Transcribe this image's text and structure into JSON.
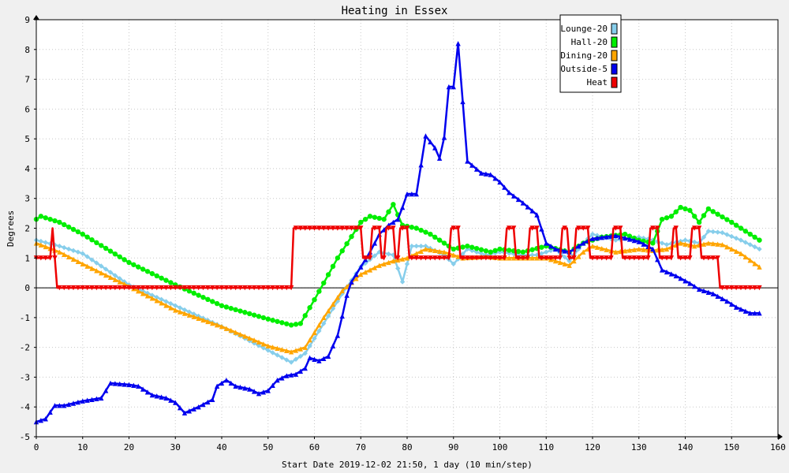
{
  "chart_data": {
    "type": "line",
    "title": "Heating in Essex",
    "xlabel": "Start Date 2019-12-02 21:50, 1 day (10 min/step)",
    "ylabel": "Degrees",
    "xlim": [
      0,
      160
    ],
    "ylim": [
      -5,
      9
    ],
    "xticks": [
      0,
      10,
      20,
      30,
      40,
      50,
      60,
      70,
      80,
      90,
      100,
      110,
      120,
      130,
      140,
      150,
      160
    ],
    "yticks": [
      -5,
      -4,
      -3,
      -2,
      -1,
      0,
      1,
      2,
      3,
      4,
      5,
      6,
      7,
      8,
      9
    ],
    "grid": true,
    "legend_position": "top-right",
    "series": [
      {
        "name": "Lounge-20",
        "color": "#87ceeb",
        "marker": "diamond",
        "points": [
          [
            0,
            1.6
          ],
          [
            5,
            1.4
          ],
          [
            10,
            1.15
          ],
          [
            20,
            0.1
          ],
          [
            30,
            -0.6
          ],
          [
            40,
            -1.3
          ],
          [
            50,
            -2.1
          ],
          [
            55,
            -2.5
          ],
          [
            58,
            -2.2
          ],
          [
            62,
            -1.2
          ],
          [
            66,
            -0.2
          ],
          [
            70,
            0.7
          ],
          [
            74,
            1.2
          ],
          [
            77,
            1.1
          ],
          [
            79,
            0.2
          ],
          [
            81,
            1.4
          ],
          [
            84,
            1.4
          ],
          [
            88,
            1.1
          ],
          [
            90,
            0.8
          ],
          [
            93,
            1.3
          ],
          [
            97,
            1.1
          ],
          [
            100,
            1.2
          ],
          [
            105,
            1.1
          ],
          [
            108,
            1.1
          ],
          [
            110,
            1.2
          ],
          [
            112,
            1.3
          ],
          [
            115,
            0.9
          ],
          [
            118,
            1.5
          ],
          [
            120,
            1.8
          ],
          [
            125,
            1.6
          ],
          [
            130,
            1.7
          ],
          [
            133,
            1.6
          ],
          [
            136,
            1.45
          ],
          [
            140,
            1.6
          ],
          [
            143,
            1.5
          ],
          [
            145,
            1.9
          ],
          [
            148,
            1.85
          ],
          [
            152,
            1.6
          ],
          [
            156,
            1.3
          ]
        ]
      },
      {
        "name": "Hall-20",
        "color": "#00ee00",
        "marker": "circle",
        "points": [
          [
            0,
            2.3
          ],
          [
            1,
            2.4
          ],
          [
            5,
            2.2
          ],
          [
            10,
            1.8
          ],
          [
            20,
            0.85
          ],
          [
            30,
            0.1
          ],
          [
            40,
            -0.6
          ],
          [
            50,
            -1.05
          ],
          [
            55,
            -1.25
          ],
          [
            57,
            -1.2
          ],
          [
            60,
            -0.4
          ],
          [
            65,
            1.0
          ],
          [
            70,
            2.2
          ],
          [
            72,
            2.4
          ],
          [
            75,
            2.3
          ],
          [
            77,
            2.8
          ],
          [
            79,
            2.1
          ],
          [
            82,
            2.0
          ],
          [
            85,
            1.8
          ],
          [
            90,
            1.3
          ],
          [
            93,
            1.4
          ],
          [
            98,
            1.2
          ],
          [
            100,
            1.3
          ],
          [
            105,
            1.2
          ],
          [
            110,
            1.4
          ],
          [
            115,
            1.2
          ],
          [
            118,
            1.5
          ],
          [
            122,
            1.7
          ],
          [
            127,
            1.8
          ],
          [
            130,
            1.6
          ],
          [
            133,
            1.5
          ],
          [
            135,
            2.3
          ],
          [
            137,
            2.4
          ],
          [
            139,
            2.7
          ],
          [
            141,
            2.6
          ],
          [
            143,
            2.2
          ],
          [
            145,
            2.65
          ],
          [
            150,
            2.2
          ],
          [
            154,
            1.8
          ],
          [
            156,
            1.6
          ]
        ]
      },
      {
        "name": "Dining-20",
        "color": "#ffa500",
        "marker": "triangle",
        "points": [
          [
            0,
            1.5
          ],
          [
            5,
            1.2
          ],
          [
            10,
            0.8
          ],
          [
            20,
            0.05
          ],
          [
            30,
            -0.75
          ],
          [
            40,
            -1.3
          ],
          [
            50,
            -1.95
          ],
          [
            55,
            -2.15
          ],
          [
            58,
            -2.0
          ],
          [
            62,
            -1.0
          ],
          [
            66,
            -0.1
          ],
          [
            70,
            0.45
          ],
          [
            74,
            0.75
          ],
          [
            77,
            0.9
          ],
          [
            80,
            1.0
          ],
          [
            84,
            1.3
          ],
          [
            88,
            1.2
          ],
          [
            92,
            1.0
          ],
          [
            97,
            1.05
          ],
          [
            100,
            1.0
          ],
          [
            105,
            1.0
          ],
          [
            110,
            1.0
          ],
          [
            115,
            0.75
          ],
          [
            118,
            1.2
          ],
          [
            120,
            1.4
          ],
          [
            125,
            1.2
          ],
          [
            130,
            1.3
          ],
          [
            133,
            1.25
          ],
          [
            136,
            1.3
          ],
          [
            139,
            1.5
          ],
          [
            142,
            1.4
          ],
          [
            145,
            1.5
          ],
          [
            148,
            1.45
          ],
          [
            152,
            1.15
          ],
          [
            156,
            0.7
          ]
        ]
      },
      {
        "name": "Outside-5",
        "color": "#0000ee",
        "marker": "triangle",
        "points": [
          [
            0,
            -4.5
          ],
          [
            2,
            -4.4
          ],
          [
            4,
            -3.95
          ],
          [
            6,
            -3.95
          ],
          [
            10,
            -3.8
          ],
          [
            14,
            -3.7
          ],
          [
            16,
            -3.2
          ],
          [
            20,
            -3.25
          ],
          [
            22,
            -3.3
          ],
          [
            25,
            -3.6
          ],
          [
            28,
            -3.7
          ],
          [
            30,
            -3.85
          ],
          [
            32,
            -4.2
          ],
          [
            35,
            -4.0
          ],
          [
            38,
            -3.75
          ],
          [
            39,
            -3.3
          ],
          [
            41,
            -3.1
          ],
          [
            43,
            -3.3
          ],
          [
            46,
            -3.4
          ],
          [
            48,
            -3.55
          ],
          [
            50,
            -3.45
          ],
          [
            52,
            -3.1
          ],
          [
            54,
            -2.95
          ],
          [
            56,
            -2.9
          ],
          [
            58,
            -2.7
          ],
          [
            59,
            -2.35
          ],
          [
            61,
            -2.45
          ],
          [
            63,
            -2.3
          ],
          [
            65,
            -1.6
          ],
          [
            66,
            -0.95
          ],
          [
            67,
            -0.25
          ],
          [
            68,
            0.2
          ],
          [
            70,
            0.7
          ],
          [
            72,
            1.2
          ],
          [
            74,
            1.8
          ],
          [
            76,
            2.1
          ],
          [
            78,
            2.3
          ],
          [
            79,
            2.7
          ],
          [
            80,
            3.15
          ],
          [
            82,
            3.15
          ],
          [
            84,
            5.1
          ],
          [
            86,
            4.7
          ],
          [
            87,
            4.35
          ],
          [
            88,
            5.05
          ],
          [
            89,
            6.75
          ],
          [
            90,
            6.75
          ],
          [
            91,
            8.2
          ],
          [
            92,
            6.25
          ],
          [
            93,
            4.25
          ],
          [
            96,
            3.85
          ],
          [
            98,
            3.8
          ],
          [
            100,
            3.55
          ],
          [
            102,
            3.2
          ],
          [
            105,
            2.85
          ],
          [
            108,
            2.45
          ],
          [
            110,
            1.5
          ],
          [
            112,
            1.3
          ],
          [
            115,
            1.2
          ],
          [
            118,
            1.5
          ],
          [
            120,
            1.65
          ],
          [
            125,
            1.75
          ],
          [
            130,
            1.55
          ],
          [
            133,
            1.3
          ],
          [
            135,
            0.6
          ],
          [
            138,
            0.4
          ],
          [
            141,
            0.15
          ],
          [
            143,
            -0.05
          ],
          [
            146,
            -0.2
          ],
          [
            149,
            -0.45
          ],
          [
            151,
            -0.65
          ],
          [
            154,
            -0.85
          ],
          [
            156,
            -0.85
          ]
        ]
      },
      {
        "name": "Heat",
        "color": "#ee0000",
        "marker": "triangle-down",
        "points": [
          [
            0,
            1
          ],
          [
            3,
            1
          ],
          [
            3.5,
            2
          ],
          [
            4,
            1
          ],
          [
            4.5,
            0
          ],
          [
            55,
            0
          ],
          [
            55.5,
            2
          ],
          [
            70,
            2
          ],
          [
            70.5,
            1
          ],
          [
            72,
            1
          ],
          [
            72.5,
            2
          ],
          [
            74,
            2
          ],
          [
            74.5,
            1
          ],
          [
            75,
            1
          ],
          [
            75.5,
            2
          ],
          [
            77,
            2
          ],
          [
            77.5,
            1
          ],
          [
            78,
            1
          ],
          [
            78.5,
            2
          ],
          [
            80,
            2
          ],
          [
            80.5,
            1
          ],
          [
            89,
            1
          ],
          [
            89.5,
            2
          ],
          [
            91,
            2
          ],
          [
            91.5,
            1
          ],
          [
            101,
            1
          ],
          [
            101.5,
            2
          ],
          [
            103,
            2
          ],
          [
            103.5,
            1
          ],
          [
            106,
            1
          ],
          [
            106.5,
            2
          ],
          [
            108,
            2
          ],
          [
            108.5,
            1
          ],
          [
            113,
            1
          ],
          [
            113.5,
            2
          ],
          [
            114.5,
            2
          ],
          [
            115,
            1
          ],
          [
            116,
            1
          ],
          [
            116.5,
            2
          ],
          [
            119,
            2
          ],
          [
            119.5,
            1
          ],
          [
            124,
            1
          ],
          [
            124.5,
            2
          ],
          [
            126,
            2
          ],
          [
            126.5,
            1
          ],
          [
            132,
            1
          ],
          [
            132.5,
            2
          ],
          [
            134,
            2
          ],
          [
            134.5,
            1
          ],
          [
            137,
            1
          ],
          [
            137.5,
            2
          ],
          [
            138,
            2
          ],
          [
            138.5,
            1
          ],
          [
            141,
            1
          ],
          [
            141.5,
            2
          ],
          [
            143,
            2
          ],
          [
            143.5,
            1
          ],
          [
            147,
            1
          ],
          [
            147.5,
            0
          ],
          [
            156,
            0
          ]
        ]
      }
    ]
  }
}
